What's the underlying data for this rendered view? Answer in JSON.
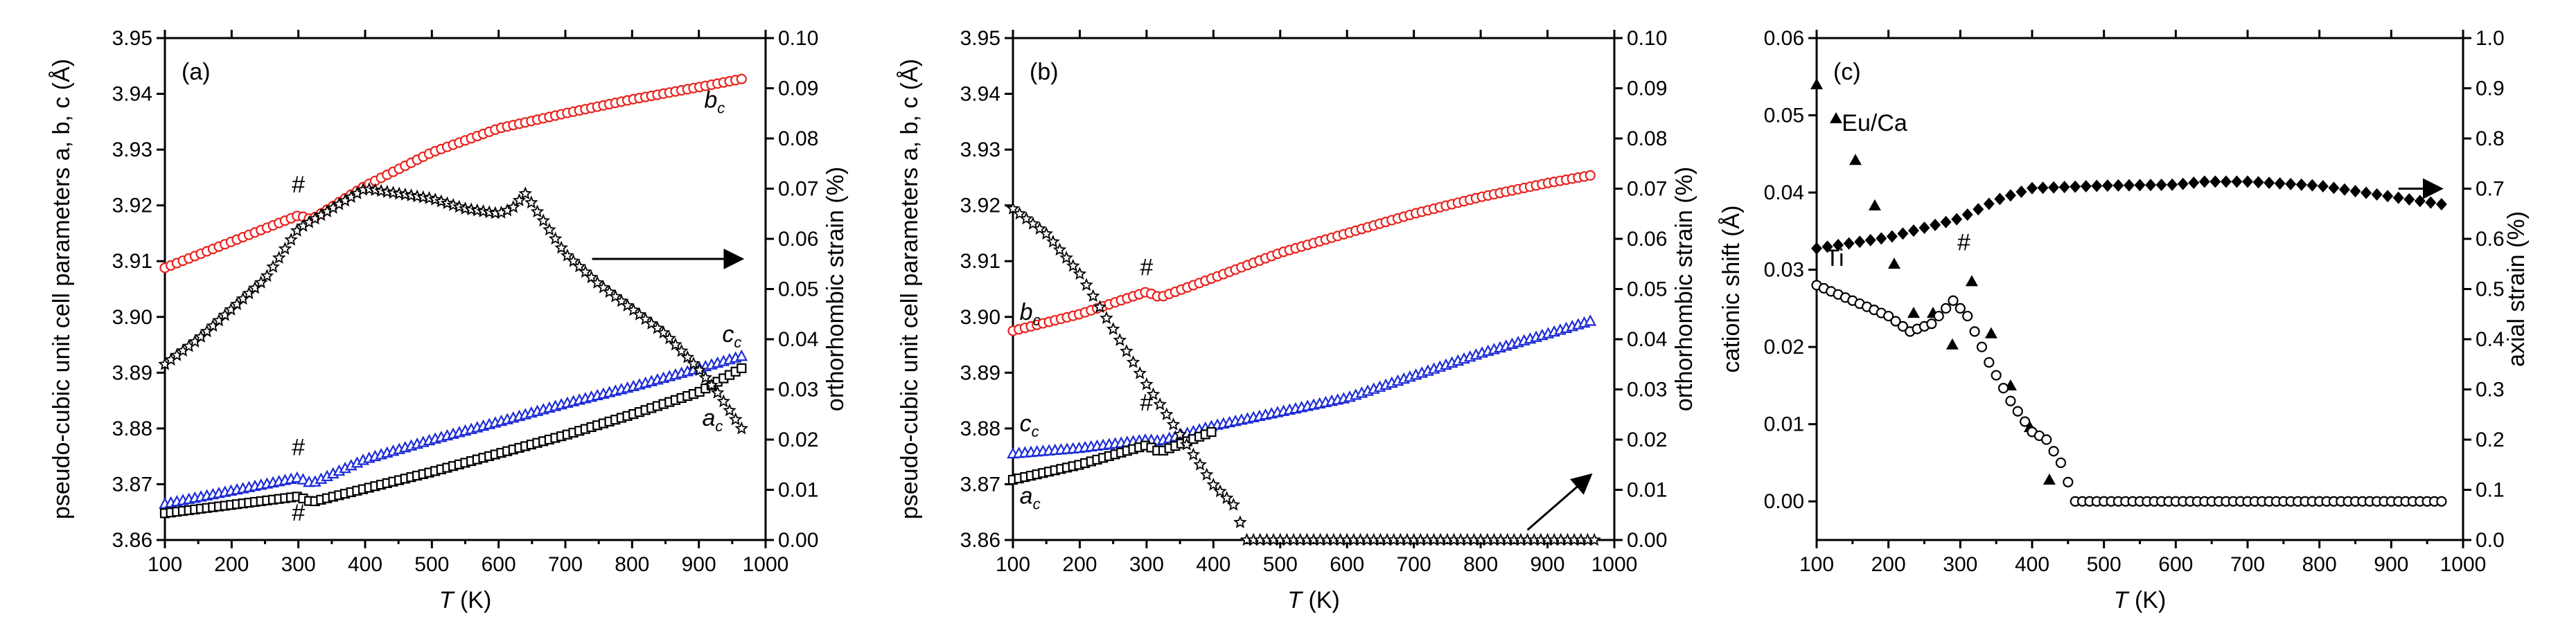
{
  "chart_data": [
    {
      "type": "scatter",
      "panel_label": "(a)",
      "xlabel_italic": "T",
      "xlabel_unit": " (K)",
      "ylabel": "pseudo-cubic unit cell parameters a, b, c (Å)",
      "y2label": "orthorhombic strain (%)",
      "xlim": [
        100,
        1000
      ],
      "ylim": [
        3.86,
        3.95
      ],
      "y2lim": [
        0.0,
        0.1
      ],
      "xticks": [
        100,
        200,
        300,
        400,
        500,
        600,
        700,
        800,
        900,
        1000
      ],
      "yticks": [
        "3.86",
        "3.87",
        "3.88",
        "3.89",
        "3.90",
        "3.91",
        "3.92",
        "3.93",
        "3.94",
        "3.95"
      ],
      "y2ticks": [
        "0.00",
        "0.01",
        "0.02",
        "0.03",
        "0.04",
        "0.05",
        "0.06",
        "0.07",
        "0.08",
        "0.09",
        "0.10"
      ],
      "series": [
        {
          "name": "b_c",
          "label": "b",
          "sub": "c",
          "axis": "left",
          "marker": "circle",
          "color": "#e8231e",
          "x": [
            100,
            300,
            320,
            400,
            500,
            600,
            700,
            800,
            900,
            970
          ],
          "y": [
            3.9088,
            3.9182,
            3.9175,
            3.9235,
            3.9295,
            3.9338,
            3.9365,
            3.939,
            3.9412,
            3.9428
          ]
        },
        {
          "name": "c_c",
          "label": "c",
          "sub": "c",
          "axis": "left",
          "marker": "triangle",
          "color": "#1d2bd6",
          "x": [
            100,
            300,
            320,
            400,
            500,
            600,
            700,
            800,
            900,
            970
          ],
          "y": [
            3.8665,
            3.8712,
            3.8702,
            3.8745,
            3.878,
            3.8812,
            3.8845,
            3.8875,
            3.8908,
            3.8932
          ]
        },
        {
          "name": "a_c",
          "label": "a",
          "sub": "c",
          "axis": "left",
          "marker": "square",
          "color": "#000000",
          "x": [
            100,
            300,
            320,
            400,
            500,
            600,
            700,
            800,
            900,
            970
          ],
          "y": [
            3.8648,
            3.8678,
            3.8668,
            3.8692,
            3.8722,
            3.8755,
            3.8788,
            3.8825,
            3.8865,
            3.8912
          ]
        },
        {
          "name": "strain",
          "label": "",
          "sub": "",
          "axis": "right",
          "marker": "star",
          "color": "#000000",
          "x": [
            100,
            150,
            200,
            250,
            280,
            300,
            350,
            400,
            450,
            500,
            550,
            600,
            620,
            640,
            700,
            750,
            800,
            850,
            900,
            930,
            970
          ],
          "y": [
            0.035,
            0.04,
            0.046,
            0.052,
            0.058,
            0.062,
            0.066,
            0.07,
            0.069,
            0.068,
            0.066,
            0.065,
            0.066,
            0.069,
            0.057,
            0.051,
            0.046,
            0.041,
            0.034,
            0.029,
            0.021
          ]
        }
      ],
      "labels": [
        {
          "series": "b_c",
          "text": "b",
          "sub": "c",
          "x": 908,
          "y": 3.9375
        },
        {
          "series": "c_c",
          "text": "c",
          "sub": "c",
          "x": 935,
          "y": 3.8955
        },
        {
          "series": "a_c",
          "text": "a",
          "sub": "c",
          "x": 905,
          "y": 3.8805
        }
      ],
      "hashes": [
        {
          "text": "#",
          "x": 300,
          "y": 3.9223
        },
        {
          "text": "#",
          "x": 300,
          "y": 3.8752
        },
        {
          "text": "#",
          "x": 300,
          "y": 3.8635
        }
      ],
      "arrow": {
        "from": [
          740,
          0.056
        ],
        "to": [
          965,
          0.056
        ]
      }
    },
    {
      "type": "scatter",
      "panel_label": "(b)",
      "xlabel_italic": "T",
      "xlabel_unit": " (K)",
      "ylabel": "pseudo-cubic unit cell parameters a, b, c (Å)",
      "y2label": "orthorhombic strain (%)",
      "xlim": [
        100,
        1000
      ],
      "ylim": [
        3.86,
        3.95
      ],
      "y2lim": [
        0.0,
        0.1
      ],
      "xticks": [
        100,
        200,
        300,
        400,
        500,
        600,
        700,
        800,
        900,
        1000
      ],
      "yticks": [
        "3.86",
        "3.87",
        "3.88",
        "3.89",
        "3.90",
        "3.91",
        "3.92",
        "3.93",
        "3.94",
        "3.95"
      ],
      "y2ticks": [
        "0.00",
        "0.01",
        "0.02",
        "0.03",
        "0.04",
        "0.05",
        "0.06",
        "0.07",
        "0.08",
        "0.09",
        "0.10"
      ],
      "series": [
        {
          "name": "b_c",
          "label": "b",
          "sub": "c",
          "axis": "left",
          "marker": "circle",
          "color": "#e8231e",
          "x": [
            100,
            200,
            300,
            320,
            400,
            500,
            600,
            700,
            800,
            900,
            970
          ],
          "y": [
            3.8975,
            3.9005,
            3.9045,
            3.9035,
            3.907,
            3.9115,
            3.915,
            3.9185,
            3.9215,
            3.924,
            3.9255
          ]
        },
        {
          "name": "c_c",
          "label": "c",
          "sub": "c",
          "axis": "left",
          "marker": "triangle",
          "color": "#1d2bd6",
          "x": [
            100,
            200,
            300,
            320,
            400,
            500,
            600,
            700,
            800,
            900,
            970
          ],
          "y": [
            3.8755,
            3.8765,
            3.878,
            3.8778,
            3.8805,
            3.883,
            3.8855,
            3.8895,
            3.8935,
            3.897,
            3.8995
          ]
        },
        {
          "name": "a_c",
          "label": "a",
          "sub": "c",
          "axis": "left",
          "marker": "square",
          "color": "#000000",
          "x": [
            100,
            200,
            300,
            320,
            400
          ],
          "y": [
            3.8708,
            3.8735,
            3.877,
            3.8758,
            3.8795
          ]
        },
        {
          "name": "strain",
          "label": "",
          "sub": "",
          "axis": "right",
          "marker": "star",
          "color": "#000000",
          "x": [
            100,
            150,
            200,
            250,
            300,
            350,
            400,
            430,
            450,
            500,
            600,
            700,
            800,
            900,
            970
          ],
          "y": [
            0.066,
            0.061,
            0.053,
            0.042,
            0.031,
            0.021,
            0.011,
            0.007,
            0.0,
            0.0,
            0.0,
            0.0,
            0.0,
            0.0,
            0.0
          ]
        }
      ],
      "labels": [
        {
          "series": "b_c",
          "text": "b",
          "sub": "c",
          "x": 110,
          "y": 3.8995
        },
        {
          "series": "c_c",
          "text": "c",
          "sub": "c",
          "x": 110,
          "y": 3.8795
        },
        {
          "series": "a_c",
          "text": "a",
          "sub": "c",
          "x": 110,
          "y": 3.8665
        }
      ],
      "hashes": [
        {
          "text": "#",
          "x": 300,
          "y": 3.9075
        },
        {
          "text": "#",
          "x": 300,
          "y": 3.8832
        }
      ],
      "arrow": {
        "from": [
          870,
          0.002
        ],
        "to": [
          965,
          0.013
        ]
      }
    },
    {
      "type": "scatter",
      "panel_label": "(c)",
      "xlabel_italic": "T",
      "xlabel_unit": " (K)",
      "ylabel": "cationic shift (Å)",
      "y2label": "axial strain (%)",
      "xlim": [
        100,
        1000
      ],
      "ylim": [
        -0.005,
        0.06
      ],
      "y2lim": [
        0.0,
        1.0
      ],
      "xticks": [
        100,
        200,
        300,
        400,
        500,
        600,
        700,
        800,
        900,
        1000
      ],
      "yticks": [
        "0.00",
        "0.01",
        "0.02",
        "0.03",
        "0.04",
        "0.05",
        "0.06"
      ],
      "ytickvals": [
        0.0,
        0.01,
        0.02,
        0.03,
        0.04,
        0.05,
        0.06
      ],
      "y2ticks": [
        "0.0",
        "0.1",
        "0.2",
        "0.3",
        "0.4",
        "0.5",
        "0.6",
        "0.7",
        "0.8",
        "0.9",
        "1.0"
      ],
      "series": [
        {
          "name": "Eu/Ca",
          "label": "Eu/Ca",
          "sub": "",
          "axis": "left",
          "marker": "filled-triangle",
          "color": "#000000",
          "x": [
            100,
            125,
            150,
            175,
            200,
            225,
            250,
            270,
            290,
            310,
            330,
            350,
            370,
            390,
            410,
            430,
            450
          ],
          "y": [
            0.054,
            0.05,
            0.045,
            0.04,
            0.033,
            0.026,
            0.022,
            0.026,
            0.02,
            0.03,
            0.025,
            0.02,
            0.015,
            0.011,
            0.007,
            0.001,
            -0.001
          ]
        },
        {
          "name": "Ti",
          "label": "Ti",
          "sub": "",
          "axis": "left",
          "marker": "open-circle",
          "color": "#000000",
          "x": [
            100,
            150,
            200,
            230,
            260,
            290,
            310,
            340,
            370,
            400,
            420,
            440,
            460,
            500,
            600,
            700,
            800,
            900,
            970
          ],
          "y": [
            0.028,
            0.026,
            0.024,
            0.022,
            0.023,
            0.026,
            0.024,
            0.018,
            0.013,
            0.009,
            0.008,
            0.005,
            0.0,
            0.0,
            0.0,
            0.0,
            0.0,
            0.0,
            0.0
          ]
        },
        {
          "name": "axial",
          "label": "",
          "sub": "",
          "axis": "right",
          "marker": "filled-diamond",
          "color": "#000000",
          "x": [
            100,
            200,
            300,
            350,
            400,
            500,
            600,
            640,
            700,
            800,
            900,
            970
          ],
          "y": [
            0.581,
            0.603,
            0.641,
            0.677,
            0.701,
            0.706,
            0.708,
            0.714,
            0.714,
            0.706,
            0.684,
            0.669
          ]
        }
      ],
      "labels": [
        {
          "series": "Eu/Ca",
          "text": "Eu/Ca",
          "sub": "",
          "x": 135,
          "y": 0.048
        },
        {
          "series": "Ti",
          "text": "Ti",
          "sub": "",
          "x": 112,
          "y": 0.0305
        }
      ],
      "hashes": [
        {
          "text": "#",
          "x": 305,
          "y": 0.0325
        }
      ],
      "arrow": {
        "from": [
          910,
          0.7
        ],
        "to": [
          970,
          0.7
        ]
      }
    }
  ]
}
